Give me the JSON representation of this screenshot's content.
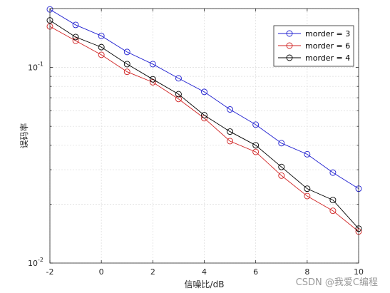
{
  "chart_data": {
    "type": "line",
    "title": "",
    "xlabel": "信噪比/dB",
    "ylabel": "误码率",
    "xlim": [
      -2,
      10
    ],
    "ylim": [
      0.01,
      0.2
    ],
    "yscale": "log",
    "grid": true,
    "legend_position": "top-right",
    "x": [
      -2,
      -1,
      0,
      1,
      2,
      3,
      4,
      5,
      6,
      7,
      8,
      9,
      10
    ],
    "x_ticks": [
      "-2",
      "0",
      "2",
      "4",
      "6",
      "8",
      "10"
    ],
    "y_ticks": [
      {
        "base": "10",
        "exp": "-1",
        "value": 0.1
      },
      {
        "base": "10",
        "exp": "-2",
        "value": 0.01
      }
    ],
    "series": [
      {
        "name": "morder = 3",
        "color": "#1f1fd0",
        "values": [
          0.198,
          0.165,
          0.145,
          0.12,
          0.104,
          0.088,
          0.075,
          0.061,
          0.051,
          0.041,
          0.036,
          0.029,
          0.024
        ]
      },
      {
        "name": "morder = 6",
        "color": "#d02020",
        "values": [
          0.162,
          0.137,
          0.116,
          0.095,
          0.084,
          0.069,
          0.055,
          0.042,
          0.037,
          0.028,
          0.022,
          0.0185,
          0.0145
        ]
      },
      {
        "name": "morder = 4",
        "color": "#000000",
        "values": [
          0.174,
          0.143,
          0.127,
          0.104,
          0.087,
          0.073,
          0.057,
          0.047,
          0.04,
          0.031,
          0.024,
          0.021,
          0.015
        ]
      }
    ]
  },
  "watermark": "CSDN @我爱C编程"
}
